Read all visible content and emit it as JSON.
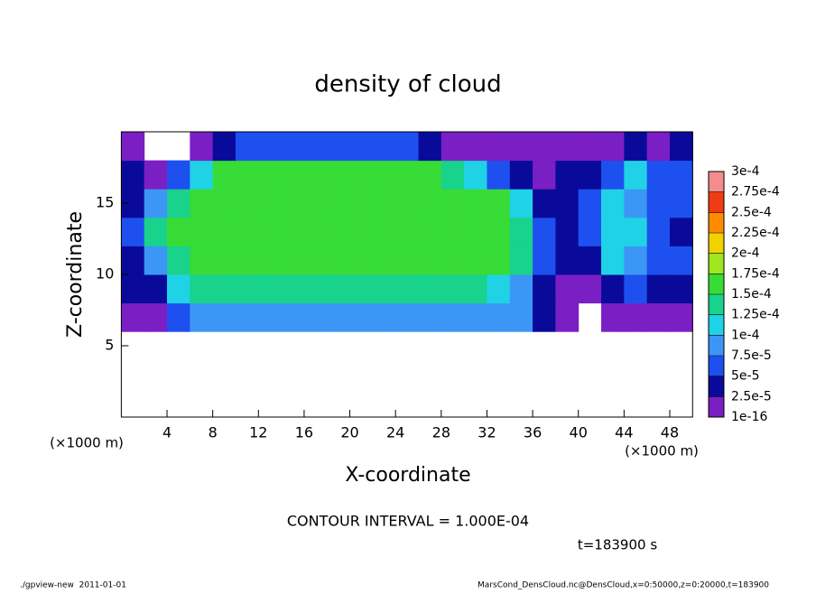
{
  "chart_data": {
    "type": "contour",
    "title": "density of cloud",
    "x_label": "X-coordinate",
    "y_label": "Z-coordinate",
    "x_unit": "(×1000 m)",
    "y_unit": "(×1000 m)",
    "contour_note": "CONTOUR INTERVAL = 1.000E-04",
    "time_label": "t=183900 s",
    "footer_left": "./gpview-new  2011-01-01",
    "footer_right": "MarsCond_DensCloud.nc@DensCloud,x=0:50000,z=0:20000,t=183900",
    "xlim": [
      0,
      50
    ],
    "ylim": [
      0,
      20
    ],
    "xticks": [
      4,
      8,
      12,
      16,
      20,
      24,
      28,
      32,
      36,
      40,
      44,
      48
    ],
    "yticks": [
      5,
      10,
      15
    ],
    "x": [
      1,
      3,
      5,
      7,
      9,
      11,
      13,
      15,
      17,
      19,
      21,
      23,
      25,
      27,
      29,
      31,
      33,
      35,
      37,
      39,
      41,
      43,
      45,
      47,
      49
    ],
    "z": [
      1,
      3,
      5,
      7,
      9,
      11,
      13,
      15,
      17,
      19
    ],
    "values": [
      [
        null,
        null,
        null,
        null,
        null,
        null,
        null,
        null,
        null,
        null,
        null,
        null,
        null,
        null,
        null,
        null,
        null,
        null,
        null,
        null,
        null,
        null,
        null,
        null,
        null
      ],
      [
        null,
        null,
        null,
        null,
        null,
        null,
        null,
        null,
        null,
        null,
        null,
        null,
        null,
        null,
        null,
        null,
        null,
        null,
        null,
        null,
        null,
        null,
        null,
        null,
        null
      ],
      [
        null,
        null,
        null,
        null,
        null,
        null,
        null,
        null,
        null,
        null,
        null,
        null,
        null,
        null,
        null,
        null,
        null,
        null,
        null,
        null,
        null,
        null,
        null,
        null,
        null
      ],
      [
        1e-05,
        1e-05,
        6e-05,
        9e-05,
        9e-05,
        9e-05,
        9e-05,
        9e-05,
        9e-05,
        9e-05,
        9e-05,
        9e-05,
        9e-05,
        9e-05,
        9e-05,
        9e-05,
        9e-05,
        9e-05,
        3e-05,
        1e-05,
        null,
        1e-05,
        1e-05,
        1e-05,
        1e-05
      ],
      [
        3e-05,
        4e-05,
        0.00011,
        0.00013,
        0.00013,
        0.00013,
        0.00013,
        0.00013,
        0.00013,
        0.00013,
        0.00013,
        0.00013,
        0.00013,
        0.00013,
        0.00013,
        0.00013,
        0.00012,
        8e-05,
        3e-05,
        2e-05,
        1e-05,
        3e-05,
        6e-05,
        3e-05,
        4e-05
      ],
      [
        4e-05,
        8e-05,
        0.00014,
        0.00016,
        0.00016,
        0.00016,
        0.00016,
        0.00016,
        0.00016,
        0.00016,
        0.00016,
        0.00016,
        0.00016,
        0.00016,
        0.00016,
        0.00016,
        0.00016,
        0.00013,
        6e-05,
        3e-05,
        3e-05,
        0.00011,
        8e-05,
        7e-05,
        5e-05
      ],
      [
        7e-05,
        0.00013,
        0.00016,
        0.00016,
        0.00016,
        0.00016,
        0.00016,
        0.00016,
        0.00016,
        0.00016,
        0.00016,
        0.00016,
        0.00016,
        0.00016,
        0.00016,
        0.00016,
        0.00016,
        0.00014,
        5e-05,
        3e-05,
        6e-05,
        0.00011,
        0.00012,
        6e-05,
        4e-05
      ],
      [
        4e-05,
        9e-05,
        0.00014,
        0.00016,
        0.00016,
        0.00016,
        0.00016,
        0.00016,
        0.00016,
        0.00016,
        0.00016,
        0.00016,
        0.00016,
        0.00016,
        0.00016,
        0.00016,
        0.00015,
        0.00011,
        4e-05,
        3e-05,
        7e-05,
        0.00011,
        8e-05,
        5e-05,
        6e-05
      ],
      [
        3e-05,
        2e-05,
        6e-05,
        0.00012,
        0.00015,
        0.00015,
        0.00015,
        0.00015,
        0.00015,
        0.00015,
        0.00015,
        0.00015,
        0.00015,
        0.00015,
        0.00013,
        0.0001,
        6e-05,
        3e-05,
        2e-05,
        3e-05,
        4e-05,
        7e-05,
        0.00011,
        5e-05,
        6e-05
      ],
      [
        2e-05,
        null,
        null,
        1e-05,
        3e-05,
        6e-05,
        6e-05,
        6e-05,
        6e-05,
        6e-05,
        6e-05,
        6e-05,
        6e-05,
        3e-05,
        2e-05,
        1e-05,
        1e-05,
        1e-05,
        1e-05,
        1e-05,
        2e-05,
        2e-05,
        3e-05,
        2e-05,
        3e-05
      ]
    ],
    "levels": [
      {
        "value": 1e-16,
        "label": "1e-16"
      },
      {
        "value": 2.5e-05,
        "label": "2.5e-5"
      },
      {
        "value": 5e-05,
        "label": "5e-5"
      },
      {
        "value": 7.5e-05,
        "label": "7.5e-5"
      },
      {
        "value": 0.0001,
        "label": "1e-4"
      },
      {
        "value": 0.000125,
        "label": "1.25e-4"
      },
      {
        "value": 0.00015,
        "label": "1.5e-4"
      },
      {
        "value": 0.000175,
        "label": "1.75e-4"
      },
      {
        "value": 0.0002,
        "label": "2e-4"
      },
      {
        "value": 0.000225,
        "label": "2.25e-4"
      },
      {
        "value": 0.00025,
        "label": "2.5e-4"
      },
      {
        "value": 0.000275,
        "label": "2.75e-4"
      },
      {
        "value": 0.0003,
        "label": "3e-4"
      }
    ],
    "colors": [
      "#7a1fc4",
      "#0a0a9a",
      "#1e50f0",
      "#3c96f5",
      "#20d2e6",
      "#19d28c",
      "#37dc37",
      "#a0e61e",
      "#f0d200",
      "#ff8c00",
      "#f03c14",
      "#f58c8c"
    ]
  }
}
